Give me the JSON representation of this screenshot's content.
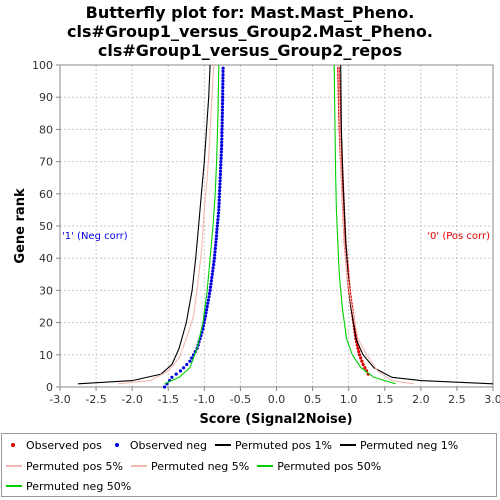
{
  "chart_data": {
    "type": "line",
    "title_lines": [
      "Butterfly plot for: Mast.Mast_Pheno.",
      "cls#Group1_versus_Group2.Mast_Pheno.",
      "cls#Group1_versus_Group2_repos"
    ],
    "xlabel": "Score (Signal2Noise)",
    "ylabel": "Gene rank",
    "xlim": [
      -3.0,
      3.0
    ],
    "ylim": [
      0,
      100
    ],
    "x_ticks": [
      "-3.0",
      "-2.5",
      "-2.0",
      "-1.5",
      "-1.0",
      "-0.5",
      "0.0",
      "0.5",
      "1.0",
      "1.5",
      "2.0",
      "2.5",
      "3.0"
    ],
    "x_tick_values": [
      -3.0,
      -2.5,
      -2.0,
      -1.5,
      -1.0,
      -0.5,
      0.0,
      0.5,
      1.0,
      1.5,
      2.0,
      2.5,
      3.0
    ],
    "y_ticks": [
      "0",
      "10",
      "20",
      "30",
      "40",
      "50",
      "60",
      "70",
      "80",
      "90",
      "100"
    ],
    "y_tick_values": [
      0,
      10,
      20,
      30,
      40,
      50,
      60,
      70,
      80,
      90,
      100
    ],
    "grid": true,
    "annotations": {
      "neg_label": "'1' (Neg corr)",
      "pos_label": "'0' (Pos corr)"
    },
    "legend": [
      {
        "name": "Observed pos",
        "color": "#e00000",
        "kind": "dot"
      },
      {
        "name": "Observed neg",
        "color": "#0000e0",
        "kind": "dot"
      },
      {
        "name": "Permuted pos 1%",
        "color": "#000000",
        "kind": "line"
      },
      {
        "name": "Permuted neg 1%",
        "color": "#000000",
        "kind": "line"
      },
      {
        "name": "Permuted pos 5%",
        "color": "#f4b8b0",
        "kind": "line"
      },
      {
        "name": "Permuted neg 5%",
        "color": "#f4b8b0",
        "kind": "line"
      },
      {
        "name": "Permuted pos 50%",
        "color": "#00d000",
        "kind": "line"
      },
      {
        "name": "Permuted neg 50%",
        "color": "#00d000",
        "kind": "line"
      }
    ],
    "series": [
      {
        "name": "Observed pos",
        "style": "dot",
        "color": "#e00000",
        "x": [
          1.27,
          1.2,
          1.15,
          1.1,
          1.07,
          1.04,
          1.01,
          0.99,
          0.97,
          0.95,
          0.94,
          0.93,
          0.92,
          0.91,
          0.9,
          0.89,
          0.88,
          0.87,
          0.86
        ],
        "y": [
          4,
          7,
          10,
          15,
          20,
          25,
          30,
          35,
          40,
          45,
          50,
          55,
          60,
          65,
          70,
          75,
          80,
          90,
          99
        ]
      },
      {
        "name": "Observed neg",
        "style": "dot",
        "color": "#0000e0",
        "x": [
          -1.55,
          -1.45,
          -1.33,
          -1.2,
          -1.1,
          -1.02,
          -0.96,
          -0.92,
          -0.89,
          -0.86,
          -0.84,
          -0.82,
          -0.8,
          -0.79,
          -0.78,
          -0.77,
          -0.76,
          -0.75,
          -0.74
        ],
        "y": [
          0,
          3,
          5,
          8,
          12,
          18,
          25,
          30,
          35,
          40,
          45,
          50,
          55,
          60,
          65,
          70,
          75,
          85,
          99
        ]
      },
      {
        "name": "Permuted pos 1%",
        "style": "line",
        "color": "#000000",
        "x": [
          3.0,
          2.0,
          1.6,
          1.35,
          1.2,
          1.1,
          1.03,
          0.99,
          0.96,
          0.94,
          0.92,
          0.9,
          0.89
        ],
        "y": [
          1,
          2,
          3,
          6,
          10,
          15,
          25,
          35,
          45,
          55,
          65,
          80,
          100
        ]
      },
      {
        "name": "Permuted neg 1%",
        "style": "line",
        "color": "#000000",
        "x": [
          -2.75,
          -2.0,
          -1.6,
          -1.45,
          -1.35,
          -1.25,
          -1.17,
          -1.12,
          -1.08,
          -1.04,
          -1.0,
          -0.97,
          -0.94,
          -0.92
        ],
        "y": [
          1,
          2,
          4,
          7,
          12,
          20,
          30,
          40,
          50,
          60,
          70,
          80,
          90,
          100
        ]
      },
      {
        "name": "Permuted pos 5%",
        "style": "line",
        "color": "#f4b8b0",
        "x": [
          1.9,
          1.6,
          1.4,
          1.25,
          1.13,
          1.04,
          0.98,
          0.94,
          0.92,
          0.9,
          0.88,
          0.86
        ],
        "y": [
          1,
          2,
          5,
          10,
          15,
          25,
          35,
          45,
          55,
          65,
          80,
          100
        ]
      },
      {
        "name": "Permuted neg 5%",
        "style": "line",
        "color": "#f4b8b0",
        "x": [
          -2.2,
          -1.75,
          -1.5,
          -1.35,
          -1.25,
          -1.15,
          -1.09,
          -1.04,
          -1.0,
          -0.96,
          -0.93,
          -0.9,
          -0.87
        ],
        "y": [
          1,
          2,
          5,
          9,
          15,
          22,
          32,
          42,
          55,
          65,
          75,
          88,
          100
        ]
      },
      {
        "name": "Permuted pos 50%",
        "style": "line",
        "color": "#00d000",
        "x": [
          1.65,
          1.35,
          1.17,
          1.05,
          0.97,
          0.91,
          0.87,
          0.85,
          0.83,
          0.82,
          0.81,
          0.8
        ],
        "y": [
          1,
          3,
          6,
          10,
          15,
          25,
          35,
          45,
          55,
          65,
          80,
          100
        ]
      },
      {
        "name": "Permuted neg 50%",
        "style": "line",
        "color": "#00d000",
        "x": [
          -1.55,
          -1.35,
          -1.2,
          -1.1,
          -1.02,
          -0.96,
          -0.92,
          -0.88,
          -0.85,
          -0.83,
          -0.81,
          -0.8
        ],
        "y": [
          1,
          3,
          6,
          12,
          20,
          30,
          40,
          50,
          60,
          70,
          85,
          100
        ]
      }
    ]
  }
}
